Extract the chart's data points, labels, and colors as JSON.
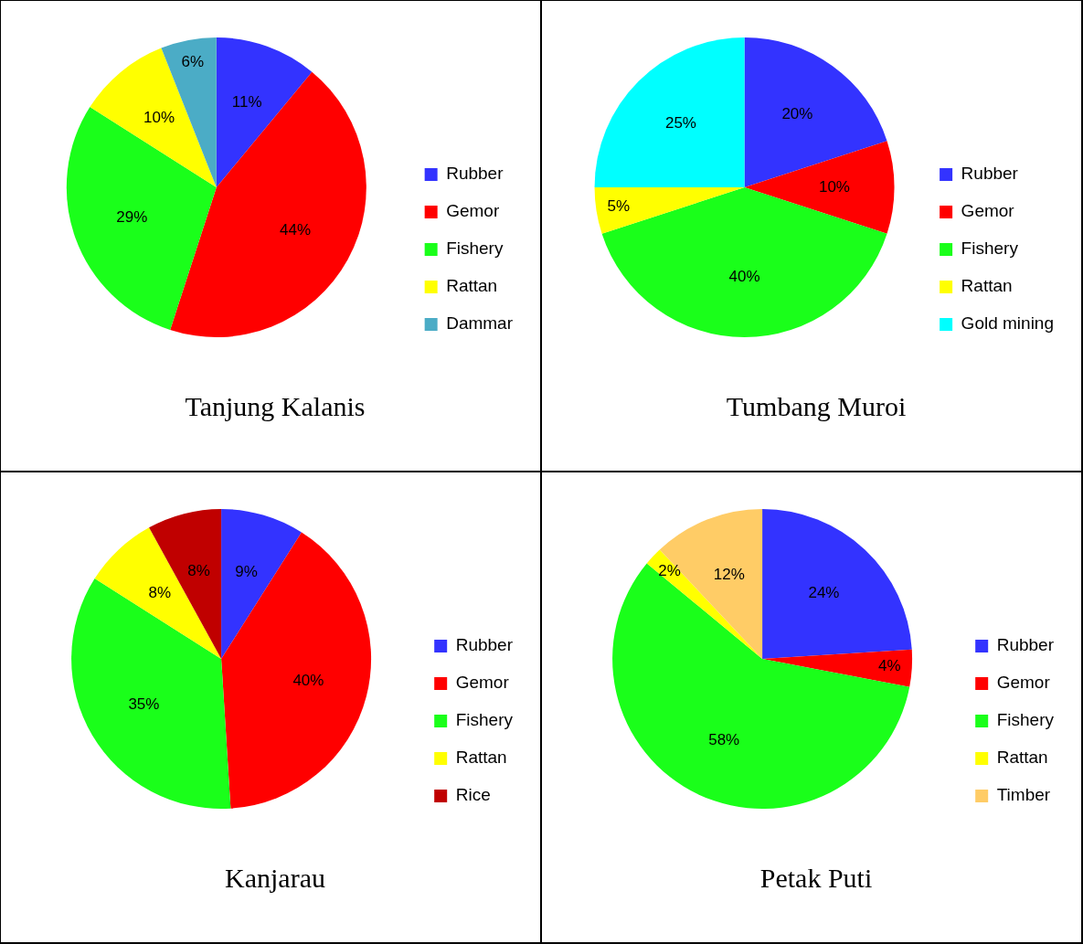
{
  "chart_data": [
    {
      "type": "pie",
      "title": "Tanjung Kalanis",
      "categories": [
        "Rubber",
        "Gemor",
        "Fishery",
        "Rattan",
        "Dammar"
      ],
      "values": [
        11,
        44,
        29,
        10,
        6
      ],
      "value_labels": [
        "11%",
        "44%",
        "29%",
        "10%",
        "6%"
      ],
      "colors": [
        "#3333ff",
        "#ff0000",
        "#1aff1a",
        "#ffff00",
        "#4bacc6"
      ],
      "legend": "right"
    },
    {
      "type": "pie",
      "title": "Tumbang Muroi",
      "categories": [
        "Rubber",
        "Gemor",
        "Fishery",
        "Rattan",
        "Gold mining"
      ],
      "values": [
        20,
        10,
        40,
        5,
        25
      ],
      "value_labels": [
        "20%",
        "10%",
        "40%",
        "5%",
        "25%"
      ],
      "colors": [
        "#3333ff",
        "#ff0000",
        "#1aff1a",
        "#ffff00",
        "#00ffff"
      ],
      "legend": "right"
    },
    {
      "type": "pie",
      "title": "Kanjarau",
      "categories": [
        "Rubber",
        "Gemor",
        "Fishery",
        "Rattan",
        "Rice"
      ],
      "values": [
        9,
        40,
        35,
        8,
        8
      ],
      "value_labels": [
        "9%",
        "40%",
        "35%",
        "8%",
        "8%"
      ],
      "colors": [
        "#3333ff",
        "#ff0000",
        "#1aff1a",
        "#ffff00",
        "#c00000"
      ],
      "legend": "right"
    },
    {
      "type": "pie",
      "title": "Petak Puti",
      "categories": [
        "Rubber",
        "Gemor",
        "Fishery",
        "Rattan",
        "Timber"
      ],
      "values": [
        24,
        4,
        58,
        2,
        12
      ],
      "value_labels": [
        "24%",
        "4%",
        "58%",
        "2%",
        "12%"
      ],
      "colors": [
        "#3333ff",
        "#ff0000",
        "#1aff1a",
        "#ffff00",
        "#ffcc66"
      ],
      "legend": "right"
    }
  ]
}
